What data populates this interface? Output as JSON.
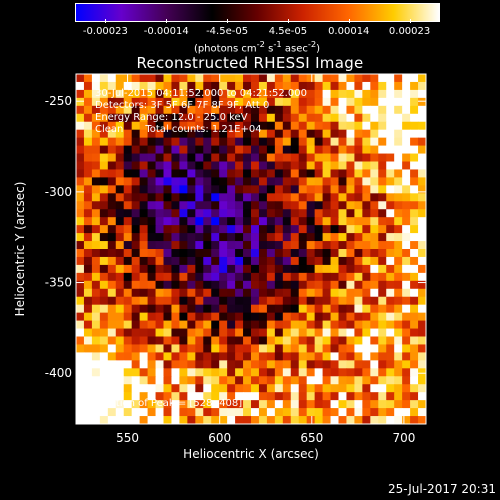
{
  "colorbar": {
    "ticks": [
      "-0.00023",
      "-0.00014",
      "-4.5e-05",
      "4.5e-05",
      "0.00014",
      "0.00023"
    ],
    "units_prefix": "(photons cm",
    "units_sup1": "-2",
    "units_mid": " s",
    "units_sup2": "-1",
    "units_mid2": " asec",
    "units_sup3": "-2",
    "units_suffix": ")",
    "colors": [
      "#0000ff",
      "#6600cc",
      "#440055",
      "#000000",
      "#660000",
      "#cc2200",
      "#ff6600",
      "#ffcc00",
      "#ffffff"
    ]
  },
  "chart_data": {
    "type": "heatmap",
    "title": "Reconstructed RHESSI Image",
    "xlabel": "Heliocentric X (arcsec)",
    "ylabel": "Heliocentric Y (arcsec)",
    "xlim": [
      522,
      712
    ],
    "ylim": [
      -428,
      -235
    ],
    "xticks": [
      550,
      600,
      650,
      700
    ],
    "yticks": [
      -250,
      -300,
      -350,
      -400
    ],
    "annotations": {
      "time_range": "30-Jul-2015 04:11:52.000 to 04:21:52.000",
      "detectors": "Detectors: 3F 5F 6F 7F 8F 9F, Att 0",
      "energy": "Energy Range: 12.0 - 25.0 keV",
      "method": "Clean",
      "counts": "Total counts: 1.21E+04",
      "peak": "Position of Peak = [528,-408]"
    },
    "grid": false
  },
  "footer": {
    "timestamp": "25-Jul-2017 20:31"
  }
}
